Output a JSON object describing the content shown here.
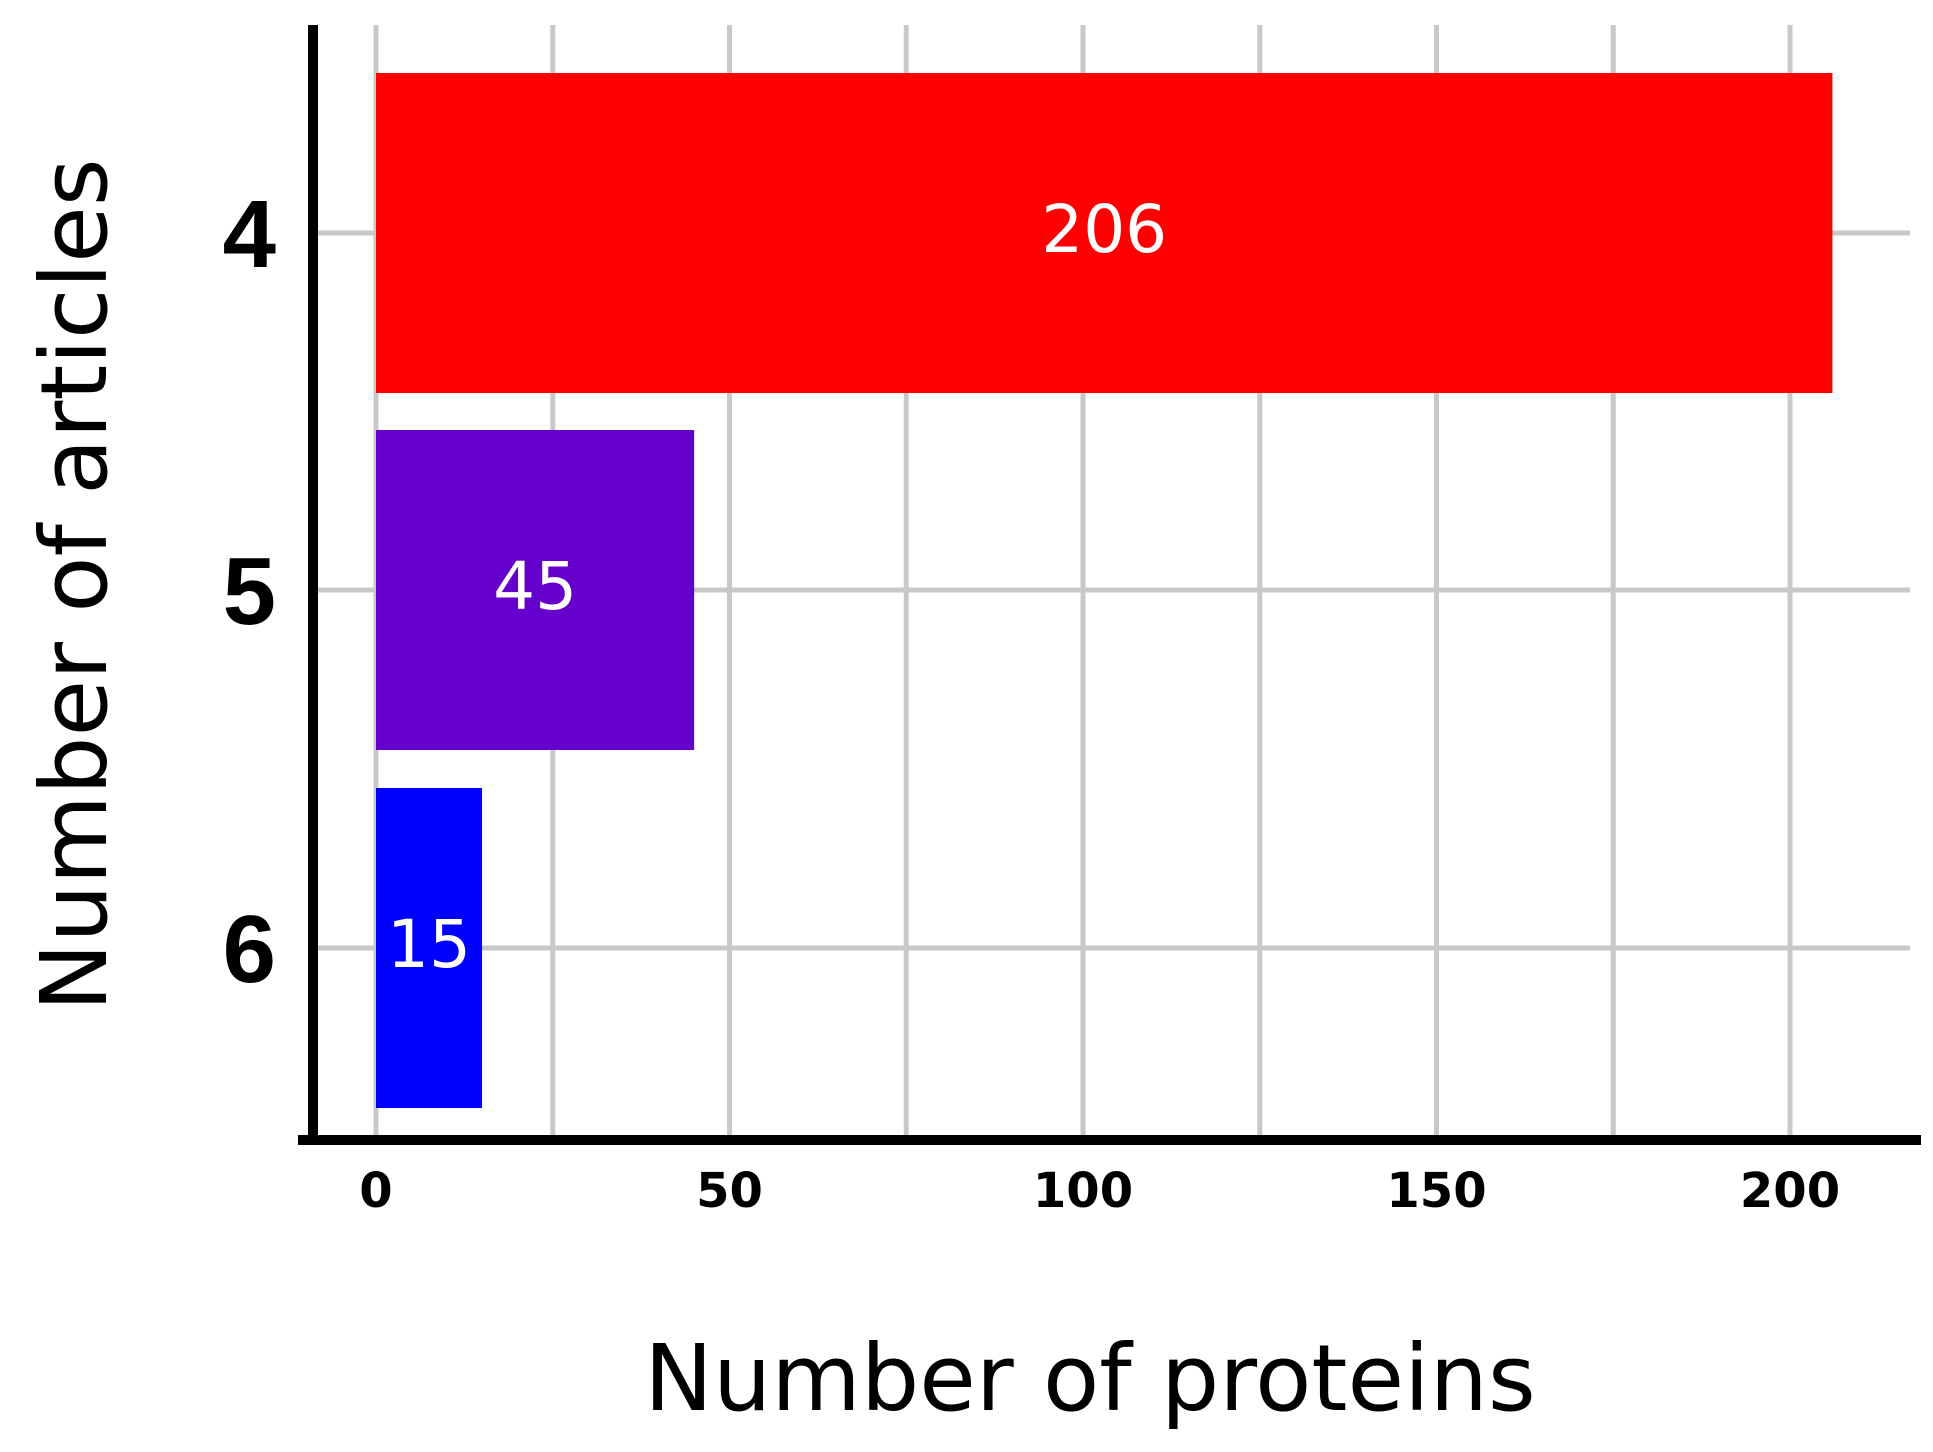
{
  "chart_data": {
    "type": "bar",
    "orientation": "horizontal",
    "xlabel": "Number of proteins",
    "ylabel": "Number of articles",
    "categories": [
      "4",
      "5",
      "6"
    ],
    "values": [
      206,
      45,
      15
    ],
    "data_labels": [
      "206",
      "45",
      "15"
    ],
    "colors": [
      "#ff0000",
      "#6600cc",
      "#0000ff"
    ],
    "xticks": [
      0,
      50,
      100,
      150,
      200
    ],
    "xlim": [
      0,
      216
    ],
    "grid": true,
    "grid_color": "#c8c8c8",
    "legend": "none"
  }
}
